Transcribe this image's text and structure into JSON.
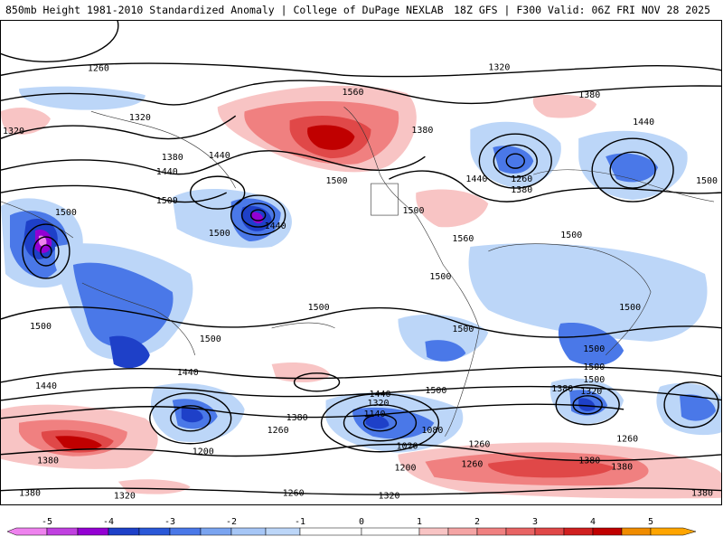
{
  "header": {
    "left": "850mb Height 1981-2010 Standardized Anomaly | College of DuPage NEXLAB",
    "right": "18Z GFS | F300 Valid: 06Z FRI NOV 28 2025"
  },
  "colors": {
    "m5": "#ee82ee",
    "m4": "#9400d3",
    "m3": "#1e40c8",
    "m2": "#4a78e8",
    "m1": "#bcd6f8",
    "p1": "#f8c4c4",
    "p2": "#f08080",
    "p3": "#e04848",
    "p4": "#c00000",
    "p5": "#ffa500"
  },
  "contour_labels": [
    "1260",
    "1320",
    "1380",
    "1440",
    "1500",
    "1560",
    "1320",
    "1380",
    "1440",
    "1380",
    "1260",
    "1380",
    "1320",
    "1440",
    "1500",
    "1500",
    "1500",
    "1440",
    "1500",
    "1560",
    "1440",
    "1500",
    "1500",
    "1500",
    "1500",
    "1500",
    "1500",
    "1500",
    "1500",
    "1500",
    "1440",
    "1440",
    "1440",
    "1380",
    "1260",
    "1200",
    "1320",
    "1140",
    "1080",
    "1020",
    "1260",
    "1200",
    "1260",
    "1380",
    "1320",
    "1500",
    "1500",
    "1500",
    "1380",
    "1380",
    "1320",
    "1380",
    "1260",
    "1320",
    "1380",
    "1260",
    "1380"
  ],
  "colorbar": {
    "ticks": [
      "-5",
      "-4",
      "-3",
      "-2",
      "-1",
      "0",
      "1",
      "2",
      "3",
      "4",
      "5"
    ]
  }
}
